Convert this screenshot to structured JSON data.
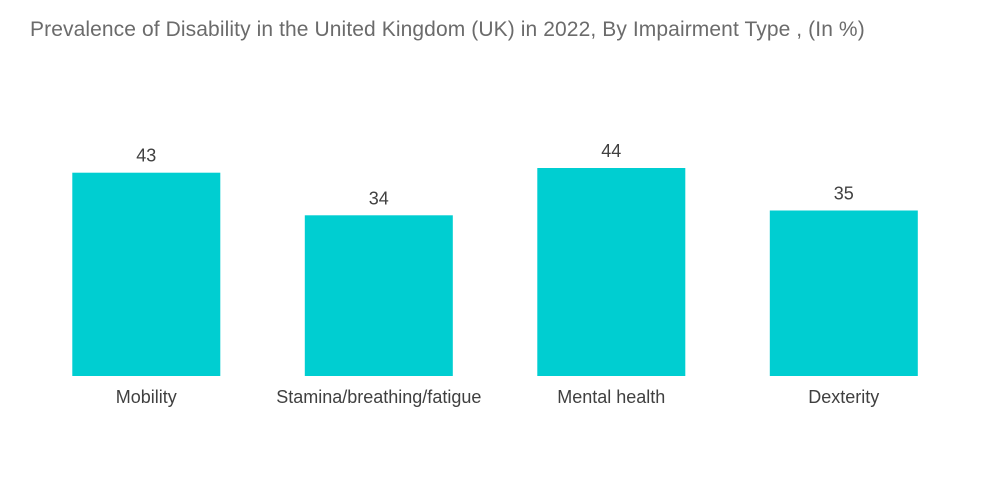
{
  "chart_data": {
    "type": "bar",
    "title": "Prevalence of Disability in the United Kingdom (UK) in 2022, By Impairment Type , (In %)",
    "categories": [
      "Mobility",
      "Stamina/breathing/fatigue",
      "Mental health",
      "Dexterity"
    ],
    "values": [
      43,
      34,
      44,
      35
    ],
    "xlabel": "",
    "ylabel": "",
    "ylim": [
      0,
      44
    ],
    "grid": false,
    "legend": "none",
    "bar_color": "#00ced1"
  }
}
